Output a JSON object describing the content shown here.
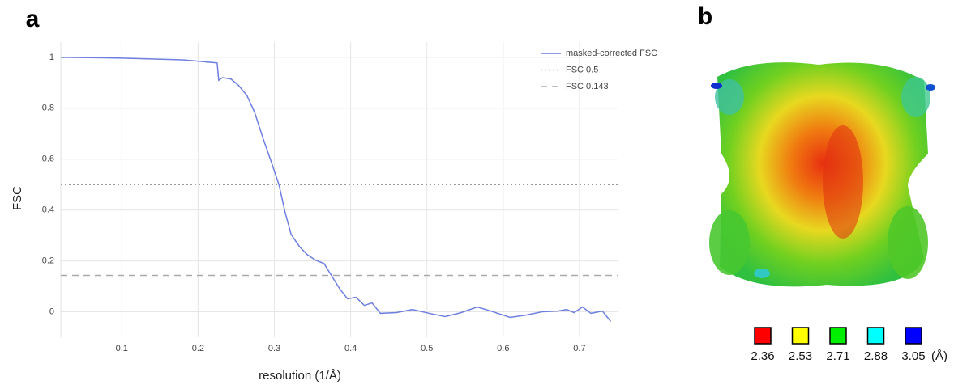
{
  "chart_data": {
    "type": "line",
    "x_label": "resolution (1/Å)",
    "y_label": "FSC",
    "x": [
      0.02,
      0.1,
      0.18,
      0.225,
      0.227,
      0.232,
      0.243,
      0.253,
      0.264,
      0.274,
      0.285,
      0.296,
      0.306,
      0.314,
      0.322,
      0.333,
      0.343,
      0.354,
      0.365,
      0.375,
      0.386,
      0.396,
      0.407,
      0.418,
      0.428,
      0.439,
      0.46,
      0.481,
      0.503,
      0.524,
      0.545,
      0.566,
      0.587,
      0.609,
      0.63,
      0.651,
      0.672,
      0.683,
      0.693,
      0.704,
      0.715,
      0.73,
      0.741
    ],
    "series": [
      {
        "name": "masked-corrected FSC",
        "color": "#6f7fe0",
        "values": [
          1,
          0.997,
          0.99,
          0.978,
          0.91,
          0.92,
          0.915,
          0.89,
          0.85,
          0.785,
          0.683,
          0.589,
          0.5,
          0.392,
          0.304,
          0.256,
          0.225,
          0.203,
          0.19,
          0.142,
          0.089,
          0.051,
          0.057,
          0.025,
          0.035,
          -0.006,
          -0.003,
          0.009,
          -0.006,
          -0.019,
          -0.003,
          0.019,
          0,
          -0.022,
          -0.013,
          0,
          0.003,
          0.009,
          -0.003,
          0.019,
          -0.006,
          0.003,
          -0.038
        ]
      }
    ],
    "reference_lines": [
      {
        "name": "FSC 0.5",
        "value": 0.5,
        "style": "dotted",
        "color": "#999999"
      },
      {
        "name": "FSC 0.143",
        "value": 0.143,
        "style": "dashed",
        "color": "#aaaaaa"
      }
    ],
    "xlim": [
      0.02,
      0.75
    ],
    "xticks": [
      0.1,
      0.2,
      0.3,
      0.4,
      0.5,
      0.6,
      0.7
    ],
    "ylim": [
      -0.1,
      1.06
    ],
    "yticks": [
      0,
      0.2,
      0.4,
      0.6,
      0.8,
      1
    ],
    "grid": true
  },
  "panel_labels": [
    "a",
    "b"
  ],
  "map_legend": {
    "values": [
      2.36,
      2.53,
      2.71,
      2.88,
      3.05
    ],
    "colors": [
      "#ff0000",
      "#ffff00",
      "#00ee00",
      "#00ffff",
      "#0000ff"
    ],
    "unit": "(Å)"
  }
}
